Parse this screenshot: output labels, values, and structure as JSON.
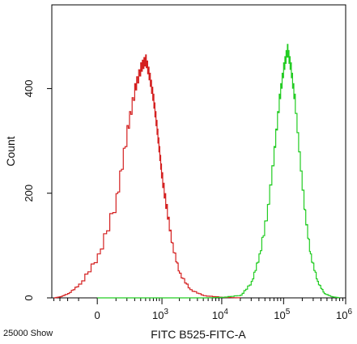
{
  "chart_data": {
    "type": "histogram",
    "xlabel": "FITC B525-FITC-A",
    "ylabel": "Count",
    "x_scale": "biexponential",
    "ylim": [
      0,
      560
    ],
    "y_ticks": [
      {
        "value": 0,
        "label": "0"
      },
      {
        "value": 200,
        "label": "200"
      },
      {
        "value": 400,
        "label": "400"
      }
    ],
    "x_ticks": [
      {
        "value": 0,
        "base": "0",
        "exp": ""
      },
      {
        "value": 1000,
        "base": "10",
        "exp": "3"
      },
      {
        "value": 10000,
        "base": "10",
        "exp": "4"
      },
      {
        "value": 100000,
        "base": "10",
        "exp": "5"
      },
      {
        "value": 1000000,
        "base": "10",
        "exp": "6"
      }
    ],
    "grid": false,
    "footer_left": "25000 Show",
    "series": [
      {
        "color": "#d42020",
        "points": [
          [
            -400,
            0
          ],
          [
            -300,
            2
          ],
          [
            -200,
            8
          ],
          [
            -100,
            25
          ],
          [
            0,
            80
          ],
          [
            100,
            190
          ],
          [
            200,
            320
          ],
          [
            300,
            400
          ],
          [
            400,
            440
          ],
          [
            500,
            455
          ],
          [
            600,
            420
          ],
          [
            700,
            380
          ],
          [
            800,
            330
          ],
          [
            900,
            280
          ],
          [
            1000,
            230
          ],
          [
            1200,
            170
          ],
          [
            1500,
            100
          ],
          [
            2000,
            45
          ],
          [
            3000,
            15
          ],
          [
            5000,
            4
          ],
          [
            10000,
            1
          ],
          [
            20000,
            0
          ]
        ]
      },
      {
        "color": "#22cc22",
        "points": [
          [
            0,
            0
          ],
          [
            5000,
            0
          ],
          [
            10000,
            1
          ],
          [
            20000,
            5
          ],
          [
            30000,
            30
          ],
          [
            40000,
            80
          ],
          [
            55000,
            170
          ],
          [
            70000,
            280
          ],
          [
            85000,
            380
          ],
          [
            100000,
            440
          ],
          [
            115000,
            475
          ],
          [
            130000,
            440
          ],
          [
            150000,
            380
          ],
          [
            180000,
            270
          ],
          [
            220000,
            160
          ],
          [
            270000,
            80
          ],
          [
            350000,
            30
          ],
          [
            450000,
            8
          ],
          [
            600000,
            2
          ],
          [
            800000,
            0
          ]
        ]
      }
    ]
  }
}
